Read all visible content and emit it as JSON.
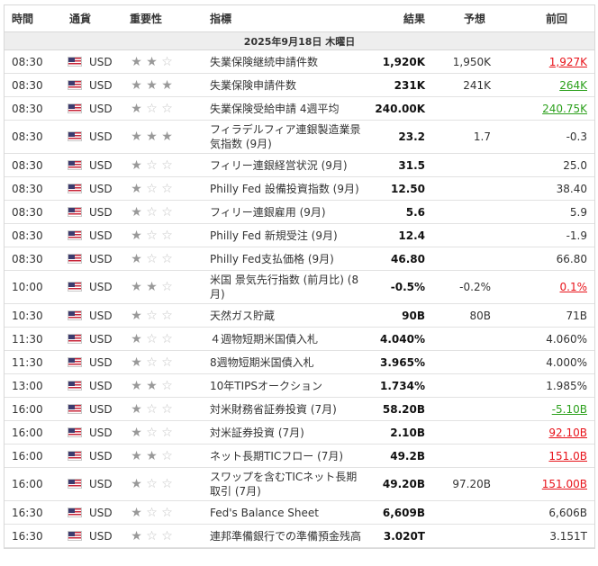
{
  "header": {
    "time": "時間",
    "currency": "通貨",
    "importance": "重要性",
    "indicator": "指標",
    "result": "結果",
    "forecast": "予想",
    "previous": "前回"
  },
  "date_row": "2025年9月18日 木曜日",
  "colors": {
    "red": "#e8141b",
    "green": "#2da11d",
    "star_on": "#999999",
    "star_off": "#c4c4c4"
  },
  "icons": {
    "flag": "us-flag-icon",
    "star": "star-icon"
  },
  "rows": [
    {
      "time": "08:30",
      "cur": "USD",
      "stars": 2,
      "name": "失業保険継続申請件数",
      "result": "1,920K",
      "rc": "red",
      "forecast": "1,950K",
      "prev": "1,927K",
      "pc": "red",
      "pu": true,
      "tall": false
    },
    {
      "time": "08:30",
      "cur": "USD",
      "stars": 3,
      "name": "失業保険申請件数",
      "result": "231K",
      "rc": "red",
      "forecast": "241K",
      "prev": "264K",
      "pc": "green",
      "pu": true,
      "tall": false
    },
    {
      "time": "08:30",
      "cur": "USD",
      "stars": 1,
      "name": "失業保険受給申請 4週平均",
      "result": "240.00K",
      "rc": "",
      "forecast": "",
      "prev": "240.75K",
      "pc": "green",
      "pu": true,
      "tall": false
    },
    {
      "time": "08:30",
      "cur": "USD",
      "stars": 3,
      "name": "フィラデルフィア連銀製造業景気指数 (9月)",
      "result": "23.2",
      "rc": "red",
      "forecast": "1.7",
      "prev": "-0.3",
      "pc": "",
      "pu": false,
      "tall": true
    },
    {
      "time": "08:30",
      "cur": "USD",
      "stars": 1,
      "name": "フィリー連銀経営状況 (9月)",
      "result": "31.5",
      "rc": "",
      "forecast": "",
      "prev": "25.0",
      "pc": "",
      "pu": false,
      "tall": false
    },
    {
      "time": "08:30",
      "cur": "USD",
      "stars": 1,
      "name": "Philly Fed 設備投資指数 (9月)",
      "result": "12.50",
      "rc": "",
      "forecast": "",
      "prev": "38.40",
      "pc": "",
      "pu": false,
      "tall": false
    },
    {
      "time": "08:30",
      "cur": "USD",
      "stars": 1,
      "name": "フィリー連銀雇用 (9月)",
      "result": "5.6",
      "rc": "",
      "forecast": "",
      "prev": "5.9",
      "pc": "",
      "pu": false,
      "tall": false
    },
    {
      "time": "08:30",
      "cur": "USD",
      "stars": 1,
      "name": "Philly Fed 新規受注 (9月)",
      "result": "12.4",
      "rc": "",
      "forecast": "",
      "prev": "-1.9",
      "pc": "",
      "pu": false,
      "tall": false
    },
    {
      "time": "08:30",
      "cur": "USD",
      "stars": 1,
      "name": "Philly Fed支払価格 (9月)",
      "result": "46.80",
      "rc": "",
      "forecast": "",
      "prev": "66.80",
      "pc": "",
      "pu": false,
      "tall": false
    },
    {
      "time": "10:00",
      "cur": "USD",
      "stars": 2,
      "name": "米国 景気先行指数 (前月比) (8月)",
      "result": "-0.5%",
      "rc": "green",
      "forecast": "-0.2%",
      "prev": "0.1%",
      "pc": "red",
      "pu": true,
      "tall": true
    },
    {
      "time": "10:30",
      "cur": "USD",
      "stars": 1,
      "name": "天然ガス貯蔵",
      "result": "90B",
      "rc": "green",
      "forecast": "80B",
      "prev": "71B",
      "pc": "",
      "pu": false,
      "tall": false
    },
    {
      "time": "11:30",
      "cur": "USD",
      "stars": 1,
      "name": "４週物短期米国債入札",
      "result": "4.040%",
      "rc": "",
      "forecast": "",
      "prev": "4.060%",
      "pc": "",
      "pu": false,
      "tall": false
    },
    {
      "time": "11:30",
      "cur": "USD",
      "stars": 1,
      "name": "8週物短期米国債入札",
      "result": "3.965%",
      "rc": "",
      "forecast": "",
      "prev": "4.000%",
      "pc": "",
      "pu": false,
      "tall": false
    },
    {
      "time": "13:00",
      "cur": "USD",
      "stars": 2,
      "name": "10年TIPSオークション",
      "result": "1.734%",
      "rc": "",
      "forecast": "",
      "prev": "1.985%",
      "pc": "",
      "pu": false,
      "tall": false
    },
    {
      "time": "16:00",
      "cur": "USD",
      "stars": 1,
      "name": "対米財務省証券投資 (7月)",
      "result": "58.20B",
      "rc": "",
      "forecast": "",
      "prev": "-5.10B",
      "pc": "green",
      "pu": true,
      "tall": false
    },
    {
      "time": "16:00",
      "cur": "USD",
      "stars": 1,
      "name": "対米証券投資 (7月)",
      "result": "2.10B",
      "rc": "",
      "forecast": "",
      "prev": "92.10B",
      "pc": "red",
      "pu": true,
      "tall": false
    },
    {
      "time": "16:00",
      "cur": "USD",
      "stars": 2,
      "name": "ネット長期TICフロー (7月)",
      "result": "49.2B",
      "rc": "",
      "forecast": "",
      "prev": "151.0B",
      "pc": "red",
      "pu": true,
      "tall": false
    },
    {
      "time": "16:00",
      "cur": "USD",
      "stars": 1,
      "name": "スワップを含むTICネット長期取引 (7月)",
      "result": "49.20B",
      "rc": "green",
      "forecast": "97.20B",
      "prev": "151.00B",
      "pc": "red",
      "pu": true,
      "tall": true
    },
    {
      "time": "16:30",
      "cur": "USD",
      "stars": 1,
      "name": "Fed's Balance Sheet",
      "result": "6,609B",
      "rc": "",
      "forecast": "",
      "prev": "6,606B",
      "pc": "",
      "pu": false,
      "tall": false
    },
    {
      "time": "16:30",
      "cur": "USD",
      "stars": 1,
      "name": "連邦準備銀行での準備預金残高",
      "result": "3.020T",
      "rc": "",
      "forecast": "",
      "prev": "3.151T",
      "pc": "",
      "pu": false,
      "tall": false
    }
  ]
}
